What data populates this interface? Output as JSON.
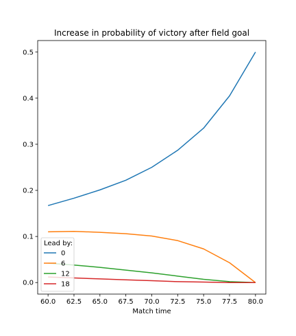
{
  "chart_data": {
    "type": "line",
    "title": "Increase in probability of victory after field goal",
    "xlabel": "Match time",
    "ylabel": "",
    "xlim": [
      59.0,
      81.0
    ],
    "ylim": [
      -0.025,
      0.525
    ],
    "xticks": [
      "60.0",
      "62.5",
      "65.0",
      "67.5",
      "70.0",
      "72.5",
      "75.0",
      "77.5",
      "80.0"
    ],
    "yticks": [
      "0.0",
      "0.1",
      "0.2",
      "0.3",
      "0.4",
      "0.5"
    ],
    "grid": false,
    "legend": {
      "title": "Lead by:",
      "placement": "lower-left"
    },
    "x": [
      60,
      62.5,
      65,
      67.5,
      70,
      72.5,
      75,
      77.5,
      80
    ],
    "series": [
      {
        "name": "0",
        "color": "#1f77b4",
        "values": [
          0.167,
          0.183,
          0.201,
          0.222,
          0.25,
          0.287,
          0.335,
          0.405,
          0.5
        ]
      },
      {
        "name": "6",
        "color": "#ff7f0e",
        "values": [
          0.11,
          0.111,
          0.109,
          0.106,
          0.101,
          0.091,
          0.073,
          0.043,
          0.0
        ]
      },
      {
        "name": "12",
        "color": "#2ca02c",
        "values": [
          0.042,
          0.038,
          0.033,
          0.027,
          0.021,
          0.014,
          0.007,
          0.002,
          0.0
        ]
      },
      {
        "name": "18",
        "color": "#d62728",
        "values": [
          0.012,
          0.01,
          0.008,
          0.006,
          0.004,
          0.002,
          0.001,
          0.0,
          0.0
        ]
      }
    ]
  }
}
